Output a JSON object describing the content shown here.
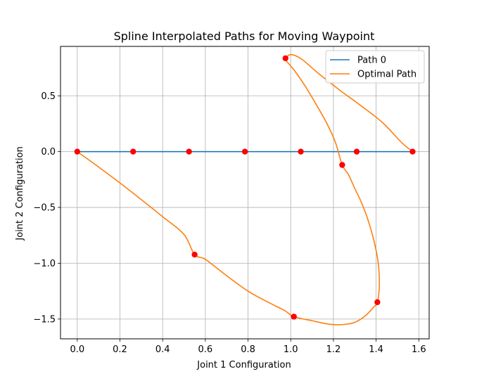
{
  "chart_data": {
    "type": "line",
    "title": "Spline Interpolated Paths for Moving Waypoint",
    "xlabel": "Joint 1 Configuration",
    "ylabel": "Joint 2 Configuration",
    "xlim": [
      -0.0785,
      1.6485
    ],
    "ylim": [
      -1.6772,
      0.9426
    ],
    "xticks": [
      0.0,
      0.2,
      0.4,
      0.6,
      0.8,
      1.0,
      1.2,
      1.4,
      1.6
    ],
    "xtick_labels": [
      "0.0",
      "0.2",
      "0.4",
      "0.6",
      "0.8",
      "1.0",
      "1.2",
      "1.4",
      "1.6"
    ],
    "yticks": [
      -1.5,
      -1.0,
      -0.5,
      0.0,
      0.5
    ],
    "ytick_labels": [
      "−1.5",
      "−1.0",
      "−0.5",
      "0.0",
      "0.5"
    ],
    "grid": true,
    "legend_position": "top-right",
    "series": [
      {
        "name": "Path 0",
        "color": "#1f77b4",
        "x": [
          0.0,
          0.2618,
          0.5236,
          0.7854,
          1.0472,
          1.309,
          1.5708
        ],
        "y": [
          0.0,
          0.0,
          0.0,
          0.0,
          0.0,
          0.0,
          0.0
        ]
      },
      {
        "name": "Optimal Path",
        "color": "#ff7f0e",
        "x": [
          0.0,
          0.1,
          0.2,
          0.3,
          0.4,
          0.5,
          0.5498,
          0.6,
          0.7,
          0.8,
          0.9,
          0.97,
          1.0148,
          1.1,
          1.16,
          1.2,
          1.25,
          1.3,
          1.35,
          1.39,
          1.4059,
          1.415,
          1.41,
          1.39,
          1.36,
          1.33,
          1.3,
          1.27,
          1.2411,
          1.21,
          1.17,
          1.12,
          1.07,
          1.02,
          0.985,
          0.97,
          0.9754,
          1.0,
          1.05,
          1.13,
          1.23,
          1.33,
          1.43,
          1.52,
          1.5708
        ],
        "y": [
          0.0,
          -0.138,
          -0.281,
          -0.43,
          -0.583,
          -0.742,
          -0.9226,
          -0.965,
          -1.112,
          -1.25,
          -1.355,
          -1.422,
          -1.4787,
          -1.515,
          -1.54,
          -1.55,
          -1.548,
          -1.53,
          -1.47,
          -1.39,
          -1.349,
          -1.2,
          -1.0,
          -0.8,
          -0.6,
          -0.45,
          -0.33,
          -0.205,
          -0.1193,
          0.08,
          0.25,
          0.42,
          0.58,
          0.72,
          0.8,
          0.835,
          0.8362,
          0.87,
          0.83,
          0.7,
          0.55,
          0.41,
          0.26,
          0.08,
          0.0
        ]
      }
    ],
    "markers": {
      "color": "#ff0000",
      "points": [
        [
          0.0,
          0.0
        ],
        [
          0.2618,
          0.0
        ],
        [
          0.5236,
          0.0
        ],
        [
          0.7854,
          0.0
        ],
        [
          1.0472,
          0.0
        ],
        [
          1.309,
          0.0
        ],
        [
          1.5708,
          0.0
        ],
        [
          0.9754,
          0.8362
        ],
        [
          1.2411,
          -0.1193
        ],
        [
          0.5498,
          -0.9226
        ],
        [
          1.0148,
          -1.4787
        ],
        [
          1.4059,
          -1.349
        ]
      ]
    }
  }
}
